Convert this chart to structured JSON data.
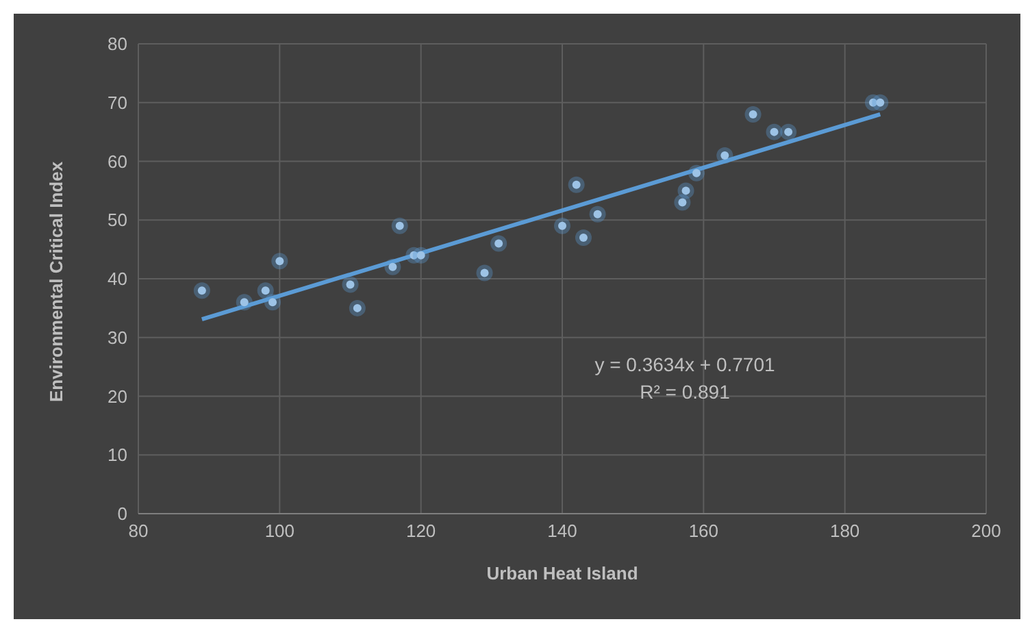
{
  "chart_data": {
    "type": "scatter",
    "xlabel": "Urban Heat Island",
    "ylabel": "Environmental Critical Index",
    "xlim": [
      80,
      200
    ],
    "xticks": [
      80,
      100,
      120,
      140,
      160,
      180,
      200
    ],
    "ylim": [
      0,
      80
    ],
    "yticks": [
      0,
      10,
      20,
      30,
      40,
      50,
      60,
      70,
      80
    ],
    "grid": true,
    "legend": false,
    "marker": "circle",
    "series": [
      {
        "color": "#9dc3e6",
        "x": [
          89,
          95,
          98,
          99,
          100,
          110,
          111,
          116,
          117,
          119,
          120,
          129,
          131,
          140,
          142,
          143,
          145,
          157,
          157.5,
          159,
          163,
          167,
          170,
          172,
          184,
          185
        ],
        "values": [
          38,
          36,
          38,
          36,
          43,
          39,
          35,
          42,
          49,
          44,
          44,
          41,
          46,
          49,
          56,
          47,
          51,
          53,
          55,
          58,
          61,
          68,
          65,
          65,
          70,
          70
        ]
      },
      {
        "type": "line",
        "color": "#5b9bd5",
        "marker": "none",
        "x": [
          89,
          185
        ],
        "values": [
          33.1,
          68.0
        ]
      }
    ],
    "annotations": [
      "y = 0.3634x + 0.7701",
      "R² = 0.891"
    ]
  }
}
